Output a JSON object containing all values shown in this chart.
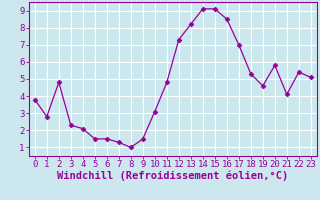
{
  "x": [
    0,
    1,
    2,
    3,
    4,
    5,
    6,
    7,
    8,
    9,
    10,
    11,
    12,
    13,
    14,
    15,
    16,
    17,
    18,
    19,
    20,
    21,
    22,
    23
  ],
  "y": [
    3.8,
    2.8,
    4.8,
    2.3,
    2.1,
    1.5,
    1.5,
    1.3,
    1.0,
    1.5,
    3.1,
    4.8,
    7.3,
    8.2,
    9.1,
    9.1,
    8.5,
    7.0,
    5.3,
    4.6,
    5.8,
    4.1,
    5.4,
    5.1
  ],
  "line_color": "#990099",
  "marker": "D",
  "markersize": 2.5,
  "bg_color": "#cce8ee",
  "grid_color": "#ffffff",
  "xlabel": "Windchill (Refroidissement éolien,°C)",
  "xlabel_fontsize": 7.5,
  "ylabel_ticks": [
    1,
    2,
    3,
    4,
    5,
    6,
    7,
    8,
    9
  ],
  "xlim": [
    -0.5,
    23.5
  ],
  "ylim": [
    0.5,
    9.5
  ],
  "tick_fontsize": 6.5,
  "tick_color": "#990099",
  "spine_color": "#990099"
}
